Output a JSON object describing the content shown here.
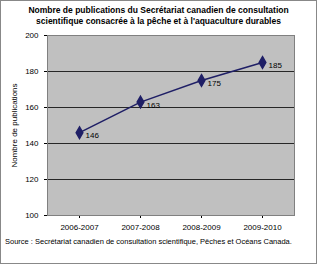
{
  "chart_data": {
    "type": "line",
    "title": "Nombre de publications du Secrétariat canadien de consultation scientifique consacrée à la pêche et à l'aquaculture durables",
    "y_label": "Nombre de publications",
    "source": "Source : Secrétariat canadien de consultation scientifique, Pêches et Océans Canada.",
    "categories": [
      "2006-2007",
      "2007-2008",
      "2008-2009",
      "2009-2010"
    ],
    "values": [
      146,
      163,
      175,
      185
    ],
    "color": "#1f1f66",
    "marker": "diamond",
    "ylim": [
      100,
      200
    ],
    "yticks": [
      100,
      120,
      140,
      160,
      180,
      200
    ],
    "grid": true,
    "data_labels": true
  }
}
